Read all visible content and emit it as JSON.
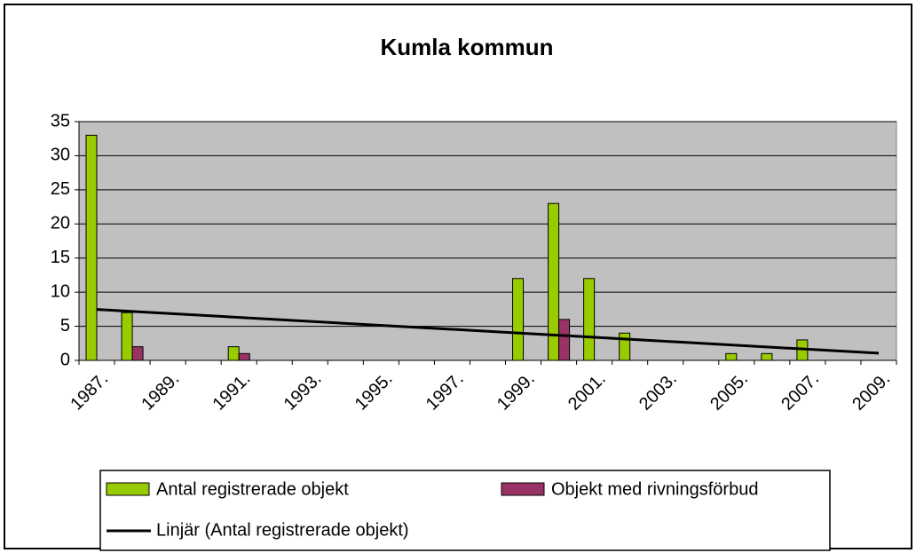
{
  "chart_data": {
    "type": "bar",
    "title": "Kumla kommun",
    "categories": [
      "1987.",
      null,
      "1989.",
      null,
      "1991.",
      null,
      "1993.",
      null,
      "1995.",
      null,
      "1997.",
      null,
      "1999.",
      null,
      "2001.",
      null,
      "2003.",
      null,
      "2005.",
      null,
      "2007.",
      null,
      "2009."
    ],
    "series": [
      {
        "name": "Antal registrerade objekt",
        "color": "#99cc00",
        "values": [
          33,
          7,
          0,
          0,
          2,
          0,
          0,
          0,
          0,
          0,
          0,
          0,
          12,
          23,
          12,
          4,
          0,
          0,
          1,
          1,
          3,
          0,
          0
        ]
      },
      {
        "name": "Objekt med rivningsförbud",
        "color": "#993366",
        "values": [
          0,
          2,
          0,
          0,
          1,
          0,
          0,
          0,
          0,
          0,
          0,
          0,
          0,
          6,
          0,
          0,
          0,
          0,
          0,
          0,
          0,
          0,
          0
        ]
      }
    ],
    "trendline": {
      "name": "Linjär (Antal registrerade objekt)",
      "color": "#000000",
      "values": [
        7.47,
        1.05
      ]
    },
    "ylim": [
      0,
      35
    ],
    "yticks": [
      0,
      5,
      10,
      15,
      20,
      25,
      30,
      35
    ],
    "grid": true,
    "plot_background": "#c0c0c0"
  }
}
